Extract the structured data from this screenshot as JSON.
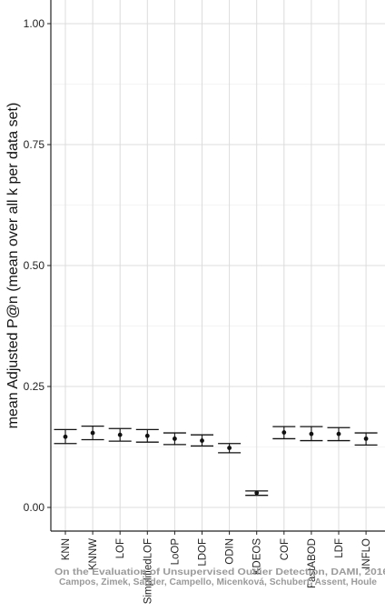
{
  "chart_data": {
    "type": "errorbar",
    "ylabel": "mean Adjusted P@n (mean over all k per data set)",
    "xlabel": "",
    "ylim": [
      0,
      1.05
    ],
    "yticks": [
      "0.00",
      "0.25",
      "0.50",
      "0.75",
      "1.00"
    ],
    "grid": true,
    "categories": [
      "KNN",
      "KNNW",
      "LOF",
      "SimplifiedLOF",
      "LoOP",
      "LDOF",
      "ODIN",
      "KDEOS",
      "COF",
      "FastABOD",
      "LDF",
      "INFLO"
    ],
    "mean": [
      0.146,
      0.154,
      0.15,
      0.148,
      0.142,
      0.138,
      0.123,
      0.03,
      0.155,
      0.152,
      0.152,
      0.142
    ],
    "lower": [
      0.132,
      0.14,
      0.137,
      0.135,
      0.13,
      0.127,
      0.113,
      0.025,
      0.142,
      0.138,
      0.138,
      0.129
    ],
    "upper": [
      0.161,
      0.168,
      0.163,
      0.161,
      0.154,
      0.15,
      0.132,
      0.034,
      0.167,
      0.167,
      0.165,
      0.154
    ]
  },
  "watermark": {
    "line1": "On the Evaluation of Unsupervised Outlier Detection, DAMI, 2016",
    "line2": "Campos, Zimek, Sander, Campello, Micenková, Schubert, Assent, Houle"
  }
}
